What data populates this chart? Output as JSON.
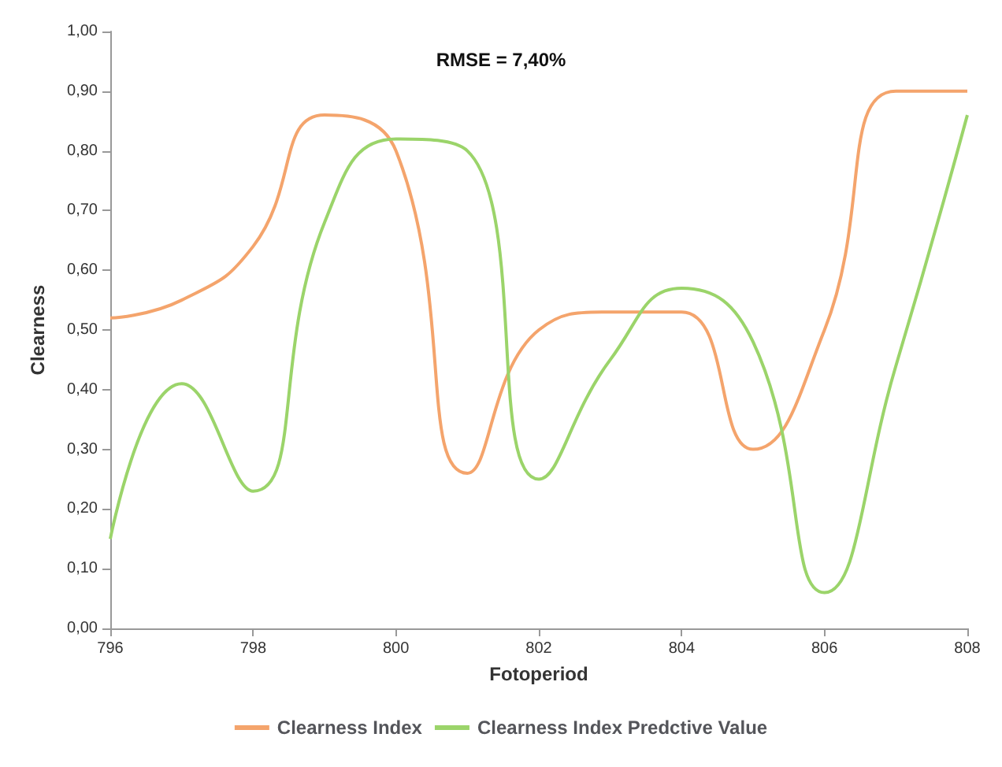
{
  "chart_data": {
    "type": "line",
    "xlabel": "Fotoperiod",
    "ylabel": "Clearness",
    "annotations": [
      "RMSE = 7,40%"
    ],
    "x": [
      796,
      797,
      798,
      799,
      800,
      801,
      802,
      803,
      804,
      805,
      806,
      807,
      808
    ],
    "series": [
      {
        "name": "Clearness Index",
        "color": "#f4a46c",
        "values": [
          0.52,
          0.55,
          0.64,
          0.86,
          0.8,
          0.26,
          0.5,
          0.53,
          0.53,
          0.3,
          0.5,
          0.9,
          0.9
        ]
      },
      {
        "name": "Clearness Index Predctive Value",
        "color": "#9bd46a",
        "values": [
          0.15,
          0.41,
          0.23,
          0.68,
          0.82,
          0.8,
          0.25,
          0.45,
          0.57,
          0.48,
          0.06,
          0.44,
          0.86
        ]
      }
    ],
    "xlim": [
      796,
      808
    ],
    "xticks": [
      796,
      798,
      800,
      802,
      804,
      806,
      808
    ],
    "ylim": [
      0,
      1
    ],
    "yticks": [
      {
        "value": 0,
        "label": "0,00"
      },
      {
        "value": 0.1,
        "label": "0,10"
      },
      {
        "value": 0.2,
        "label": "0,20"
      },
      {
        "value": 0.3,
        "label": "0,30"
      },
      {
        "value": 0.4,
        "label": "0,40"
      },
      {
        "value": 0.5,
        "label": "0,50"
      },
      {
        "value": 0.6,
        "label": "0,60"
      },
      {
        "value": 0.7,
        "label": "0,70"
      },
      {
        "value": 0.8,
        "label": "0,80"
      },
      {
        "value": 0.9,
        "label": "0,90"
      },
      {
        "value": 1,
        "label": "1,00"
      }
    ],
    "grid": false,
    "legend": "bottom",
    "marker": "none",
    "line_style": "solid"
  }
}
